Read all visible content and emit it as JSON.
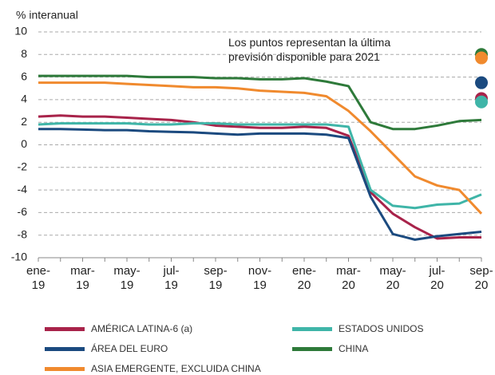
{
  "chart_data": {
    "type": "line",
    "y_label": "% interanual",
    "annotation": "Los puntos representan la última previsión disponible para 2021",
    "categories": [
      "ene-19",
      null,
      "mar-19",
      null,
      "may-19",
      null,
      "jul-19",
      null,
      "sep-19",
      null,
      "nov-19",
      null,
      "ene-20",
      null,
      "mar-20",
      null,
      "may-20",
      null,
      "jul-20",
      null,
      "sep-20"
    ],
    "ylim": [
      -10,
      10
    ],
    "yticks": [
      -10,
      -8,
      -6,
      -4,
      -2,
      0,
      2,
      4,
      6,
      8,
      10
    ],
    "grid": true,
    "series": [
      {
        "name": "AMÉRICA LATINA-6 (a)",
        "color": "#a8234a",
        "values": [
          2.5,
          2.6,
          2.5,
          2.5,
          2.4,
          2.3,
          2.2,
          2.0,
          1.7,
          1.6,
          1.5,
          1.5,
          1.6,
          1.5,
          0.8,
          -4.2,
          -6.1,
          -7.3,
          -8.3,
          -8.2,
          -8.2
        ],
        "forecast": 4.1
      },
      {
        "name": "ESTADOS UNIDOS",
        "color": "#3fb5a8",
        "values": [
          1.8,
          1.9,
          1.9,
          1.9,
          1.9,
          1.8,
          1.8,
          1.9,
          1.9,
          1.8,
          1.8,
          1.8,
          1.8,
          1.8,
          1.6,
          -4.0,
          -5.4,
          -5.6,
          -5.3,
          -5.2,
          -4.4
        ],
        "forecast": 3.8
      },
      {
        "name": "ÁREA DEL EURO",
        "color": "#1b4a7f",
        "values": [
          1.4,
          1.4,
          1.35,
          1.3,
          1.3,
          1.2,
          1.15,
          1.1,
          1.0,
          0.9,
          1.0,
          1.0,
          1.0,
          0.9,
          0.6,
          -4.6,
          -7.9,
          -8.4,
          -8.1,
          -7.9,
          -7.7
        ],
        "forecast": 5.5
      },
      {
        "name": "CHINA",
        "color": "#2e7a3a",
        "values": [
          6.1,
          6.1,
          6.1,
          6.1,
          6.1,
          6.0,
          6.0,
          6.0,
          5.9,
          5.9,
          5.8,
          5.8,
          5.9,
          5.6,
          5.2,
          2.0,
          1.4,
          1.4,
          1.7,
          2.1,
          2.2
        ],
        "forecast": 8.0
      },
      {
        "name": "ASIA EMERGENTE, EXCLUIDA CHINA",
        "color": "#f08a2e",
        "values": [
          5.5,
          5.5,
          5.5,
          5.5,
          5.4,
          5.3,
          5.2,
          5.1,
          5.1,
          5.0,
          4.8,
          4.7,
          4.6,
          4.3,
          3.0,
          1.2,
          -0.8,
          -2.8,
          -3.6,
          -4.0,
          -6.1
        ],
        "forecast": 7.7
      }
    ]
  }
}
